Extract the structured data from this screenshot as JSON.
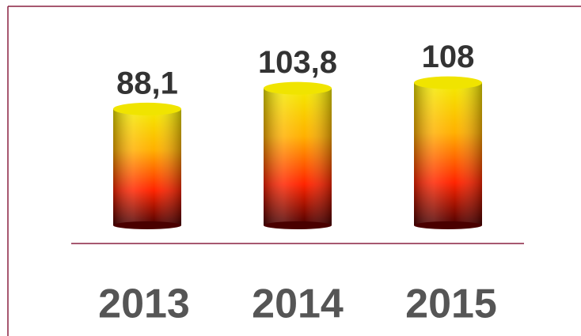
{
  "chart_data": {
    "type": "bar",
    "categories": [
      "2013",
      "2014",
      "2015"
    ],
    "values": [
      88.1,
      103.8,
      108
    ],
    "value_labels": [
      "88,1",
      "103,8",
      "108"
    ]
  }
}
